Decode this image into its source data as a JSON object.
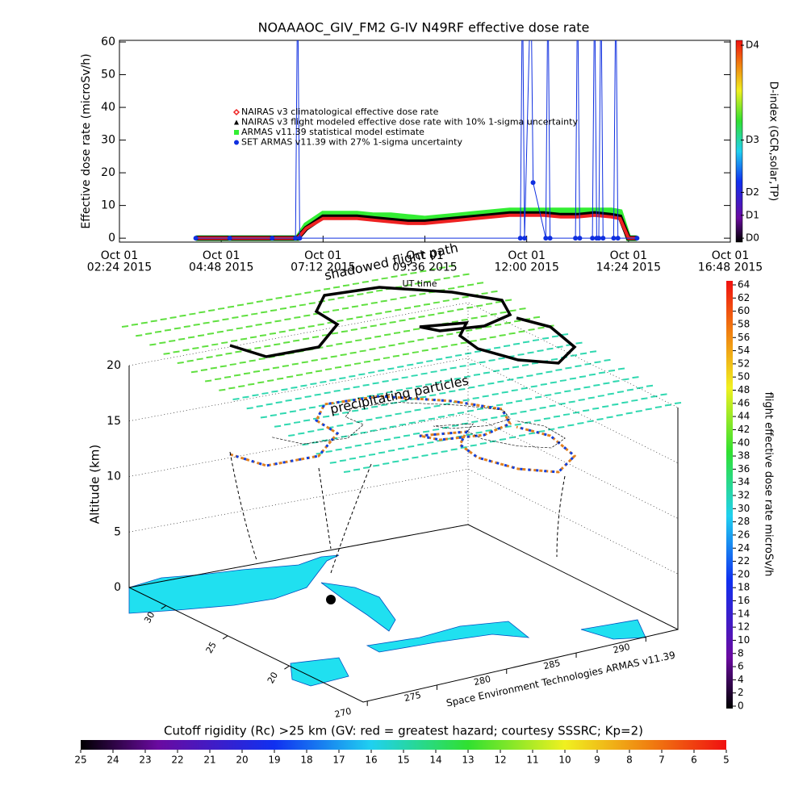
{
  "chart_data": [
    {
      "type": "line",
      "title": "NOAAAOC_GIV_FM2 G-IV   N49RF  effective dose rate",
      "y_label": "Effective dose rate (microSv/h)",
      "x_label": "UT time",
      "xlim": [
        2.4,
        16.8
      ],
      "xticks": [
        {
          "value": 2.4,
          "label": "Oct 01\n02:24 2015"
        },
        {
          "value": 4.8,
          "label": "Oct 01\n04:48 2015"
        },
        {
          "value": 7.2,
          "label": "Oct 01\n07:12 2015"
        },
        {
          "value": 9.6,
          "label": "Oct 01\n09:36 2015"
        },
        {
          "value": 12.0,
          "label": "Oct 01\n12:00 2015"
        },
        {
          "value": 14.4,
          "label": "Oct 01\n14:24 2015"
        },
        {
          "value": 16.8,
          "label": "Oct 01\n16:48 2015"
        }
      ],
      "ylim": [
        -1.2,
        60.5
      ],
      "yticks": [
        0,
        10,
        20,
        30,
        40,
        50,
        60
      ],
      "x": [
        4.2,
        4.8,
        5.4,
        6.0,
        6.6,
        6.8,
        7.2,
        7.6,
        8.0,
        8.4,
        8.8,
        9.2,
        9.6,
        10.0,
        10.4,
        10.8,
        11.2,
        11.6,
        12.0,
        12.4,
        12.8,
        13.2,
        13.6,
        14.0,
        14.2,
        14.4,
        14.6
      ],
      "series": [
        {
          "name": "ARMAS v11.39 statistical model estimate",
          "color": "#33ee33",
          "marker": "square",
          "values": [
            0,
            0,
            0,
            0,
            0,
            4,
            7.5,
            7.5,
            7.5,
            7,
            7,
            6.5,
            6,
            6.5,
            7,
            7.5,
            8,
            8.5,
            8.5,
            8.5,
            8.5,
            8.5,
            8.5,
            8.5,
            8,
            0,
            0
          ]
        },
        {
          "name": "NAIRAS v3 flight modeled effective dose rate with 10% 1-sigma uncertainty",
          "color": "#000000",
          "marker": "triangle",
          "values": [
            0,
            0,
            0,
            0,
            0,
            3,
            6.5,
            6.5,
            6.5,
            6,
            5.5,
            5,
            5,
            5.5,
            6,
            6.5,
            7,
            7.5,
            7.5,
            7.5,
            7,
            7,
            7.5,
            7,
            6.5,
            0,
            0
          ]
        },
        {
          "name": "NAIRAS v3 climatological effective dose rate",
          "color": "#ee2222",
          "marker": "diamond",
          "values": [
            0,
            0,
            0,
            0,
            0,
            3,
            6,
            6,
            6,
            5.5,
            5,
            4.5,
            4.5,
            5,
            5.5,
            6,
            6.5,
            7,
            7,
            7,
            6.5,
            6.5,
            7,
            6.5,
            6,
            0,
            0
          ]
        },
        {
          "name": "SET ARMAS v11.39 with 27% 1-sigma uncertainty",
          "color": "#1030e0",
          "marker": "circle",
          "x": [
            4.2,
            5.0,
            6.0,
            6.55,
            6.6,
            6.65,
            11.85,
            11.9,
            11.95,
            12.1,
            12.15,
            12.45,
            12.5,
            12.55,
            13.15,
            13.2,
            13.25,
            13.55,
            13.6,
            13.65,
            13.7,
            13.75,
            13.8,
            14.05,
            14.1,
            14.15,
            14.6
          ],
          "values": [
            0,
            0,
            0,
            0,
            80,
            0,
            0,
            80,
            0,
            80,
            17,
            0,
            80,
            0,
            0,
            80,
            0,
            0,
            80,
            0,
            0,
            80,
            0,
            0,
            80,
            0,
            0
          ]
        }
      ],
      "legend_order": [
        2,
        1,
        0,
        3
      ],
      "colorbar": {
        "label": "D-index (GCR,solar,TP)",
        "ylim": [
          -1.2,
          60.5
        ],
        "ticks": [
          {
            "value": 0,
            "label": "D0"
          },
          {
            "value": 7,
            "label": "D1"
          },
          {
            "value": 14,
            "label": "D2"
          },
          {
            "value": 30,
            "label": "D3"
          },
          {
            "value": 59,
            "label": "D4"
          }
        ]
      }
    },
    {
      "type": "scatter3d",
      "z_label": "Altitude (km)",
      "zlim": [
        0,
        20
      ],
      "zticks": [
        0,
        5,
        10,
        15,
        20
      ],
      "ylim": [
        33,
        14
      ],
      "yticks": [
        30,
        25,
        20
      ],
      "xlim": [
        269.7,
        292.3
      ],
      "xticks": [
        270,
        275,
        280,
        285,
        290
      ],
      "annotations": [
        "shadowed flight path",
        "precipitating particles",
        "Space Environment Technologies ARMAS v11.39"
      ]
    },
    {
      "type": "colorbar",
      "label": "flight effective dose rate microSv/h",
      "lim": [
        0,
        64
      ],
      "ticks": [
        0,
        2,
        4,
        6,
        8,
        10,
        12,
        14,
        16,
        18,
        20,
        22,
        24,
        26,
        28,
        30,
        32,
        34,
        36,
        38,
        40,
        42,
        44,
        46,
        48,
        50,
        52,
        54,
        56,
        58,
        60,
        62,
        64
      ]
    },
    {
      "type": "colorbar",
      "label": "Cutoff rigidity (Rc) >25 km (GV: red = greatest hazard; courtesy SSSRC; Kp=2)",
      "lim": [
        25,
        5
      ],
      "ticks": [
        25,
        24,
        23,
        22,
        21,
        20,
        19,
        18,
        17,
        16,
        15,
        14,
        13,
        12,
        11,
        10,
        9,
        8,
        7,
        6,
        5
      ]
    }
  ]
}
